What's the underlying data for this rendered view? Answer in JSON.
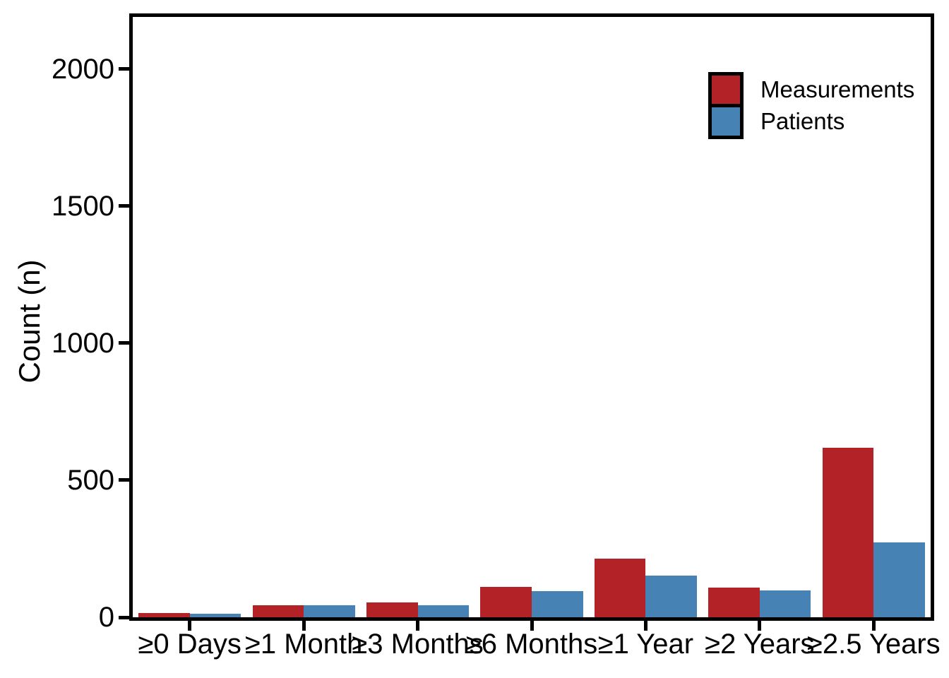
{
  "chart_data": {
    "type": "bar",
    "bar_layout": "dodged",
    "title": "",
    "xlabel": "",
    "ylabel": "Count (n)",
    "categories": [
      "≥0 Days",
      "≥1 Month",
      "≥3 Months",
      "≥6 Months",
      "≥1 Year",
      "≥2 Years",
      "≥2.5 Years"
    ],
    "series": [
      {
        "name": "Measurements",
        "color": "#B22226",
        "values": [
          16,
          45,
          53,
          112,
          214,
          107,
          618
        ]
      },
      {
        "name": "Patients",
        "color": "#4682B4",
        "values": [
          14,
          43,
          43,
          95,
          153,
          97,
          272
        ]
      }
    ],
    "yticks": [
      0,
      500,
      1000,
      1500,
      2000
    ],
    "ylim": [
      0,
      2190
    ],
    "grid": false,
    "legend": {
      "position": "top-right",
      "entries": [
        "Measurements",
        "Patients"
      ]
    },
    "colors": {
      "axis": "#000000",
      "text": "#000000",
      "background": "#FFFFFF"
    }
  }
}
